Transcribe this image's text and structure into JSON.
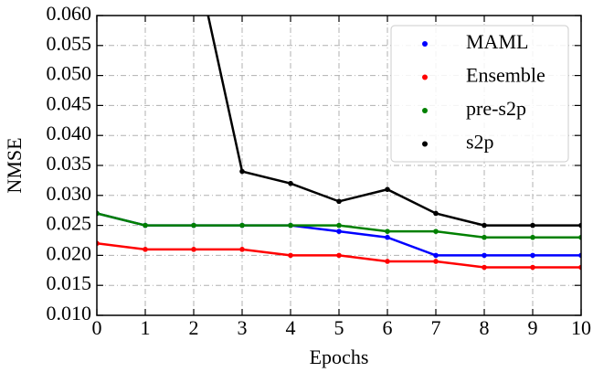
{
  "chart_data": {
    "type": "line",
    "xlabel": "Epochs",
    "ylabel": "NMSE",
    "x": [
      0,
      1,
      2,
      3,
      4,
      5,
      6,
      7,
      8,
      9,
      10
    ],
    "series": [
      {
        "name": "MAML",
        "color": "#0000ff",
        "values": [
          0.027,
          0.025,
          0.025,
          0.025,
          0.025,
          0.024,
          0.023,
          0.02,
          0.02,
          0.02,
          0.02
        ]
      },
      {
        "name": "Ensemble",
        "color": "#ff0000",
        "values": [
          0.022,
          0.021,
          0.021,
          0.021,
          0.02,
          0.02,
          0.019,
          0.019,
          0.018,
          0.018,
          0.018
        ]
      },
      {
        "name": "pre-s2p",
        "color": "#008000",
        "values": [
          0.027,
          0.025,
          0.025,
          0.025,
          0.025,
          0.025,
          0.024,
          0.024,
          0.023,
          0.023,
          0.023
        ]
      },
      {
        "name": "s2p",
        "color": "#000000",
        "values": [
          null,
          null,
          0.071,
          0.034,
          0.032,
          0.029,
          0.031,
          0.027,
          0.025,
          0.025,
          0.025
        ]
      }
    ],
    "xlim": [
      0,
      10
    ],
    "xticks": [
      0,
      1,
      2,
      3,
      4,
      5,
      6,
      7,
      8,
      9,
      10
    ],
    "ylim": [
      0.01,
      0.06
    ],
    "yticks": [
      {
        "value": 0.01,
        "label": "0.010"
      },
      {
        "value": 0.015,
        "label": "0.015"
      },
      {
        "value": 0.02,
        "label": "0.020"
      },
      {
        "value": 0.025,
        "label": "0.025"
      },
      {
        "value": 0.03,
        "label": "0.030"
      },
      {
        "value": 0.035,
        "label": "0.035"
      },
      {
        "value": 0.04,
        "label": "0.040"
      },
      {
        "value": 0.045,
        "label": "0.045"
      },
      {
        "value": 0.05,
        "label": "0.050"
      },
      {
        "value": 0.055,
        "label": "0.055"
      },
      {
        "value": 0.06,
        "label": "0.060"
      }
    ],
    "grid": true,
    "legend": "upper right"
  }
}
